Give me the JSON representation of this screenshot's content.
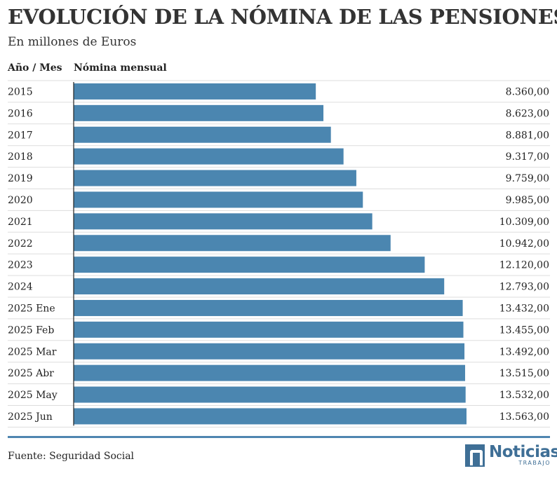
{
  "header": {
    "title": "EVOLUCIÓN DE LA NÓMINA DE LAS PENSIONES",
    "subtitle": "En millones de Euros"
  },
  "columns": {
    "year": "Año / Mes",
    "value": "Nómina mensual"
  },
  "chart_data": {
    "type": "bar",
    "orientation": "horizontal",
    "title": "EVOLUCIÓN DE LA NÓMINA DE LAS PENSIONES",
    "subtitle": "En millones de Euros",
    "xlim": [
      0,
      15000
    ],
    "grid": false,
    "categories": [
      "2015",
      "2016",
      "2017",
      "2018",
      "2019",
      "2020",
      "2021",
      "2022",
      "2023",
      "2024",
      "2025 Ene",
      "2025 Feb",
      "2025 Mar",
      "2025 Abr",
      "2025 May",
      "2025 Jun"
    ],
    "values": [
      8360,
      8623,
      8881,
      9317,
      9759,
      9985,
      10309,
      10942,
      12120,
      12793,
      13432,
      13455,
      13492,
      13515,
      13532,
      13563
    ],
    "value_labels": [
      "8.360,00",
      "8.623,00",
      "8.881,00",
      "9.317,00",
      "9.759,00",
      "9.985,00",
      "10.309,00",
      "10.942,00",
      "12.120,00",
      "12.793,00",
      "13.432,00",
      "13.455,00",
      "13.492,00",
      "13.515,00",
      "13.532,00",
      "13.563,00"
    ],
    "colors": {
      "bar": "#4b86b0"
    }
  },
  "footer": {
    "source": "Fuente: Seguridad Social",
    "logo_name": "Noticias",
    "logo_sub": "TRABAJO",
    "logo_color": "#3f6f96"
  }
}
